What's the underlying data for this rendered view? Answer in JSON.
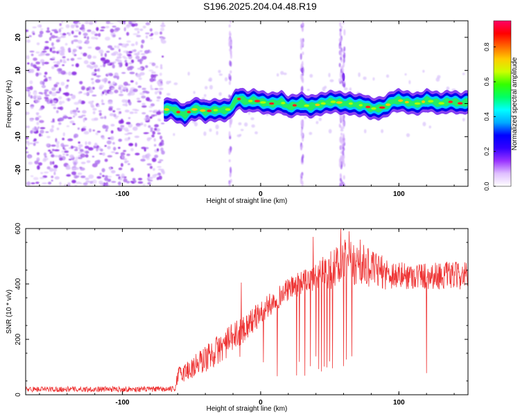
{
  "title": "S196.2025.204.04.48.R19",
  "chart_data": [
    {
      "type": "heatmap",
      "xlabel": "Height of straight line (km)",
      "ylabel": "Frequency (Hz)",
      "xlim": [
        -170,
        150
      ],
      "ylim": [
        -25,
        25
      ],
      "xticks": [
        -100,
        0,
        100
      ],
      "yticks": [
        -20,
        -10,
        0,
        10,
        20
      ],
      "colorbar": {
        "label": "Normalized spectral amplitude",
        "ticks": [
          "0.0",
          "0.2",
          "0.4",
          "0.6",
          "0.8"
        ],
        "range": [
          0,
          0.95
        ],
        "colormap": [
          "#ffffff",
          "#e0c0ff",
          "#9933ff",
          "#3300ff",
          "#0000ff",
          "#00aaff",
          "#00ffff",
          "#00ff66",
          "#33ff00",
          "#ccff00",
          "#ffcc00",
          "#ff6600",
          "#ff0000",
          "#ff0066"
        ]
      },
      "noise_region_x": [
        -170,
        -70
      ],
      "ridge": {
        "x": [
          -70,
          -65,
          -60,
          -55,
          -50,
          -45,
          -40,
          -35,
          -30,
          -25,
          -22,
          -18,
          -15,
          -10,
          -5,
          0,
          5,
          10,
          15,
          20,
          25,
          30,
          35,
          40,
          45,
          50,
          55,
          60,
          65,
          70,
          75,
          80,
          85,
          90,
          95,
          100,
          105,
          110,
          115,
          120,
          125,
          130,
          135,
          140,
          145,
          150
        ],
        "y": [
          -2.0,
          -1.5,
          -2.5,
          -3.5,
          -2.0,
          -1.5,
          -2.5,
          -2.0,
          -2.0,
          -2.0,
          -1.5,
          1.0,
          1.5,
          0.5,
          1.0,
          0.5,
          0.0,
          0.0,
          0.5,
          -1.0,
          -0.5,
          0.0,
          -1.0,
          -0.5,
          0.0,
          0.5,
          0.5,
          0.0,
          0.0,
          -0.5,
          -0.5,
          -1.5,
          -1.5,
          -1.0,
          0.5,
          1.0,
          0.5,
          0.0,
          0.0,
          1.0,
          0.5,
          0.0,
          0.5,
          0.5,
          0.0,
          0.5
        ]
      },
      "vertical_streaks_x": [
        -22,
        30,
        58,
        60
      ]
    },
    {
      "type": "line",
      "xlabel": "Height of straight line (km)",
      "ylabel": "SNR (10 * v/v)",
      "xlim": [
        -170,
        150
      ],
      "ylim": [
        0,
        600
      ],
      "xticks": [
        -100,
        0,
        100
      ],
      "yticks": [
        0,
        200,
        400,
        600
      ],
      "color": "#ee3333",
      "envelope": {
        "x": [
          -170,
          -62,
          -60,
          -50,
          -40,
          -30,
          -20,
          -10,
          0,
          10,
          20,
          30,
          40,
          50,
          60,
          70,
          80,
          90,
          100,
          110,
          120,
          130,
          140,
          150
        ],
        "low": [
          10,
          10,
          40,
          50,
          80,
          110,
          150,
          200,
          250,
          300,
          340,
          360,
          370,
          380,
          390,
          390,
          390,
          380,
          380,
          380,
          380,
          380,
          380,
          380
        ],
        "high": [
          30,
          30,
          100,
          140,
          180,
          220,
          260,
          300,
          340,
          380,
          420,
          450,
          480,
          520,
          560,
          560,
          520,
          500,
          480,
          480,
          480,
          480,
          480,
          480
        ]
      },
      "dropouts_x": [
        -15,
        2,
        12,
        26,
        28,
        32,
        36,
        38,
        40,
        42,
        44,
        46,
        48,
        50,
        52,
        60,
        62,
        64,
        66,
        120
      ],
      "spikes": [
        {
          "x": -14,
          "y": 405
        },
        {
          "x": 38,
          "y": 570
        },
        {
          "x": 58,
          "y": 598
        },
        {
          "x": 64,
          "y": 590
        },
        {
          "x": 72,
          "y": 560
        }
      ]
    }
  ]
}
